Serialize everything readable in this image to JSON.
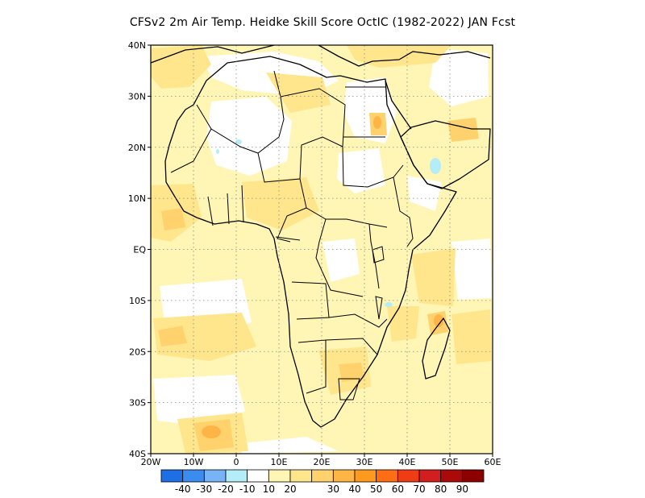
{
  "title": "CFSv2  2m Air Temp. Heidke Skill Score OctIC (1982-2022) JAN Fcst",
  "map": {
    "lat_labels": [
      "40N",
      "30N",
      "20N",
      "10N",
      "EQ",
      "10S",
      "20S",
      "30S",
      "40S"
    ],
    "lon_labels": [
      "20W",
      "10W",
      "0",
      "10E",
      "20E",
      "30E",
      "40E",
      "50E",
      "60E"
    ],
    "lon_range": [
      -20,
      60
    ],
    "lat_range": [
      -40,
      40
    ]
  },
  "colorbar": {
    "colors": [
      "#1e6ee6",
      "#3c8cf0",
      "#78b4f5",
      "#b4ecf8",
      "#ffffff",
      "#fff5b4",
      "#ffe68c",
      "#ffd26e",
      "#ffb446",
      "#ff9a1e",
      "#ff6e14",
      "#f03c14",
      "#d21e1e",
      "#aa0a0a",
      "#8c0000"
    ],
    "labels": [
      "-40",
      "-30",
      "-20",
      "-10",
      "10",
      "20",
      "30",
      "40",
      "50",
      "60",
      "70",
      "80",
      "90"
    ]
  }
}
